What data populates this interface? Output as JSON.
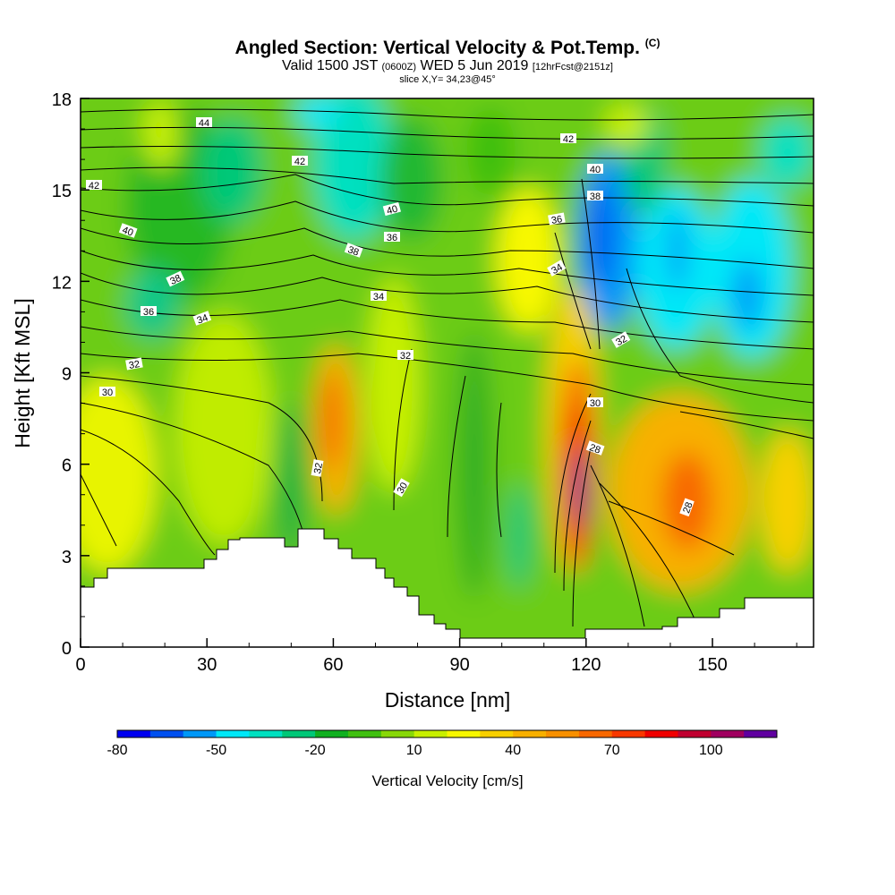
{
  "chart_data": {
    "type": "heatmap",
    "title": "Angled Section: Vertical Velocity & Pot.Temp.",
    "title_tag": "(C)",
    "subtitle_valid": "Valid 1500 JST",
    "subtitle_z": "(0600Z)",
    "subtitle_date": "WED 5 Jun 2019",
    "subtitle_fcst": "[12hrFcst@2151z]",
    "subtitle_slice": "slice X,Y= 34,23@45°",
    "xlabel": "Distance [nm]",
    "ylabel": "Height [Kft MSL]",
    "xlim": [
      0,
      174
    ],
    "ylim": [
      0,
      18
    ],
    "x_ticks": [
      "0",
      "30",
      "60",
      "90",
      "120",
      "150"
    ],
    "y_ticks": [
      "0",
      "3",
      "6",
      "9",
      "12",
      "15",
      "18"
    ],
    "colorbar": {
      "title": "Vertical Velocity [cm/s]",
      "levels": [
        -80,
        -70,
        -60,
        -50,
        -40,
        -30,
        -20,
        -10,
        0,
        10,
        20,
        30,
        40,
        50,
        60,
        70,
        80,
        90,
        100,
        110,
        120
      ],
      "tick_labels": [
        "-80",
        "-50",
        "-20",
        "10",
        "40",
        "70",
        "100"
      ],
      "colors": [
        "#0000f0",
        "#0050f0",
        "#0098f8",
        "#00e8f8",
        "#00e0c0",
        "#00c878",
        "#10b020",
        "#40c010",
        "#88d808",
        "#c8f000",
        "#f8f800",
        "#f8d000",
        "#f8b000",
        "#f89000",
        "#f86800",
        "#f83800",
        "#f00000",
        "#c00030",
        "#a00060",
        "#6000a0"
      ]
    },
    "contour_labels": [
      "44",
      "42",
      "42",
      "42",
      "40",
      "40",
      "40",
      "38",
      "38",
      "38",
      "38",
      "36",
      "36",
      "36",
      "34",
      "34",
      "34",
      "32",
      "32",
      "32",
      "32",
      "30",
      "30",
      "30",
      "28",
      "28"
    ]
  }
}
